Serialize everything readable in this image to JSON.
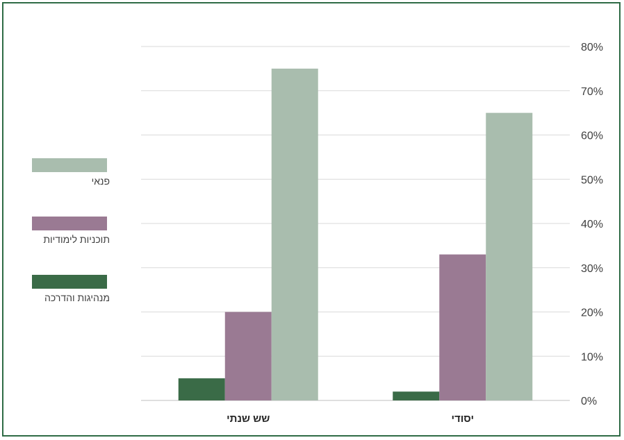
{
  "chart_data": {
    "type": "bar",
    "categories": [
      "שש שנתי",
      "יסודי"
    ],
    "series": [
      {
        "name": "מנהיגות והדרכה",
        "color": "#3a6b47",
        "values": [
          5,
          2
        ]
      },
      {
        "name": "תוכניות לימודיות",
        "color": "#9a7a93",
        "values": [
          20,
          33
        ]
      },
      {
        "name": "פנאי",
        "color": "#a9bdae",
        "values": [
          75,
          65
        ]
      }
    ],
    "y_ticks": [
      "0%",
      "10%",
      "20%",
      "30%",
      "40%",
      "50%",
      "60%",
      "70%",
      "80%"
    ],
    "ylim": [
      0,
      80
    ],
    "y_axis_position": "right",
    "grid": true,
    "legend_position": "left"
  }
}
